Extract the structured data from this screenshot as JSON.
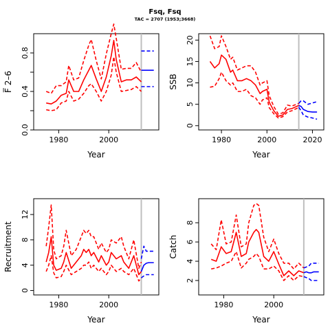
{
  "header": {
    "title": "Fsq, Fsq",
    "subtitle": "TAC = 2707 (1953;3668)"
  },
  "colors": {
    "estimate": "#ff0000",
    "projection": "#0000ff",
    "divider": "#bebebe"
  },
  "chart_data": [
    {
      "type": "line",
      "ylabel": "F̅ 2–6",
      "xlabel": "Year",
      "xlim": [
        1970,
        2020
      ],
      "ylim": [
        0,
        1.0
      ],
      "xticks": [
        1980,
        2000
      ],
      "yticks": [
        0.0,
        0.2,
        0.4,
        0.6,
        0.8
      ],
      "ytick_labels": [
        "0.0",
        "",
        "0.4",
        "",
        "0.8"
      ],
      "divider_year": 2013,
      "series": [
        {
          "role": "estimate",
          "style": "solid",
          "x": [
            1975,
            1977,
            1979,
            1981,
            1983,
            1984,
            1986,
            1988,
            1990,
            1992,
            1993,
            1995,
            1997,
            1999,
            2001,
            2002,
            2003,
            2005,
            2007,
            2009,
            2011,
            2013
          ],
          "y": [
            0.28,
            0.27,
            0.3,
            0.36,
            0.38,
            0.52,
            0.4,
            0.4,
            0.52,
            0.62,
            0.67,
            0.53,
            0.4,
            0.55,
            0.77,
            0.93,
            0.73,
            0.5,
            0.52,
            0.52,
            0.55,
            0.5
          ]
        },
        {
          "role": "estimate",
          "style": "dashed",
          "x": [
            1975,
            1977,
            1979,
            1981,
            1983,
            1984,
            1986,
            1988,
            1990,
            1992,
            1993,
            1995,
            1997,
            1999,
            2001,
            2002,
            2003,
            2005,
            2007,
            2009,
            2011,
            2013
          ],
          "y": [
            0.4,
            0.38,
            0.46,
            0.46,
            0.5,
            0.67,
            0.52,
            0.54,
            0.72,
            0.88,
            0.94,
            0.72,
            0.53,
            0.79,
            1.0,
            1.1,
            0.95,
            0.63,
            0.64,
            0.64,
            0.7,
            0.6
          ]
        },
        {
          "role": "estimate",
          "style": "dashed",
          "x": [
            1975,
            1977,
            1979,
            1981,
            1983,
            1984,
            1986,
            1988,
            1990,
            1992,
            1993,
            1995,
            1997,
            1999,
            2001,
            2002,
            2003,
            2005,
            2007,
            2009,
            2011,
            2013
          ],
          "y": [
            0.21,
            0.2,
            0.21,
            0.28,
            0.3,
            0.4,
            0.3,
            0.32,
            0.38,
            0.46,
            0.48,
            0.4,
            0.3,
            0.4,
            0.57,
            0.76,
            0.6,
            0.4,
            0.41,
            0.42,
            0.45,
            0.4
          ]
        },
        {
          "role": "projection",
          "style": "solid",
          "x": [
            2013,
            2014,
            2015,
            2016,
            2017,
            2018
          ],
          "y": [
            0.62,
            0.62,
            0.62,
            0.62,
            0.62,
            0.62
          ]
        },
        {
          "role": "projection",
          "style": "dashed",
          "x": [
            2013,
            2014,
            2015,
            2016,
            2017,
            2018
          ],
          "y": [
            0.82,
            0.82,
            0.82,
            0.82,
            0.82,
            0.82
          ]
        },
        {
          "role": "projection",
          "style": "dashed",
          "x": [
            2013,
            2014,
            2015,
            2016,
            2017,
            2018
          ],
          "y": [
            0.45,
            0.45,
            0.45,
            0.45,
            0.45,
            0.45
          ]
        }
      ]
    },
    {
      "type": "line",
      "ylabel": "SSB",
      "xlabel": "Year",
      "xlim": [
        1970,
        2025
      ],
      "ylim": [
        -1,
        21.5
      ],
      "xticks": [
        1980,
        2000,
        2020
      ],
      "yticks": [
        0,
        5,
        10,
        15,
        20
      ],
      "ytick_labels": [
        "0",
        "5",
        "10",
        "15",
        "20"
      ],
      "divider_year": 2014,
      "series": [
        {
          "role": "estimate",
          "style": "solid",
          "x": [
            1975,
            1977,
            1979,
            1980,
            1982,
            1984,
            1985,
            1987,
            1989,
            1991,
            1993,
            1995,
            1997,
            1998,
            2000,
            2001,
            2003,
            2005,
            2007,
            2009,
            2011,
            2013,
            2014
          ],
          "y": [
            15.0,
            13.5,
            14.5,
            16.5,
            15.5,
            12.5,
            13.0,
            10.5,
            10.5,
            11.0,
            10.5,
            9.5,
            7.5,
            8.0,
            8.5,
            5.5,
            3.5,
            2.2,
            2.5,
            3.8,
            4.0,
            4.5,
            4.7
          ]
        },
        {
          "role": "estimate",
          "style": "dashed",
          "x": [
            1975,
            1977,
            1979,
            1980,
            1982,
            1984,
            1985,
            1987,
            1989,
            1991,
            1993,
            1995,
            1997,
            1998,
            2000,
            2001,
            2003,
            2005,
            2007,
            2009,
            2011,
            2013,
            2014
          ],
          "y": [
            21.0,
            18.0,
            18.5,
            21.0,
            18.5,
            15.5,
            16.0,
            13.0,
            13.5,
            14.0,
            14.0,
            12.5,
            9.5,
            10.0,
            10.5,
            7.0,
            4.5,
            2.7,
            3.0,
            4.8,
            4.6,
            5.0,
            5.2
          ]
        },
        {
          "role": "estimate",
          "style": "dashed",
          "x": [
            1975,
            1977,
            1979,
            1980,
            1982,
            1984,
            1985,
            1987,
            1989,
            1991,
            1993,
            1995,
            1997,
            1998,
            2000,
            2001,
            2003,
            2005,
            2007,
            2009,
            2011,
            2013,
            2014
          ],
          "y": [
            9.0,
            9.2,
            11.0,
            12.5,
            10.5,
            9.5,
            10.0,
            8.0,
            8.0,
            8.5,
            7.0,
            6.5,
            5.0,
            6.0,
            6.5,
            4.2,
            2.8,
            1.8,
            2.1,
            3.2,
            3.5,
            4.0,
            4.3
          ]
        },
        {
          "role": "projection",
          "style": "solid",
          "x": [
            2014,
            2015,
            2016,
            2018,
            2020,
            2022
          ],
          "y": [
            4.7,
            4.5,
            3.8,
            3.3,
            3.2,
            3.2
          ]
        },
        {
          "role": "projection",
          "style": "dashed",
          "x": [
            2014,
            2015,
            2016,
            2018,
            2020,
            2022
          ],
          "y": [
            5.2,
            5.8,
            5.8,
            5.0,
            5.3,
            5.6
          ]
        },
        {
          "role": "projection",
          "style": "dashed",
          "x": [
            2014,
            2015,
            2016,
            2018,
            2020,
            2022
          ],
          "y": [
            4.3,
            3.5,
            2.5,
            2.0,
            1.8,
            1.5
          ]
        }
      ]
    },
    {
      "type": "line",
      "ylabel": "Recruitment",
      "xlabel": "Year",
      "xlim": [
        1970,
        2020
      ],
      "ylim": [
        -0.7,
        14.5
      ],
      "xticks": [
        1980,
        2000
      ],
      "yticks": [
        0,
        4,
        8,
        12
      ],
      "ytick_labels": [
        "0",
        "4",
        "8",
        "12"
      ],
      "divider_year": 2013,
      "series": [
        {
          "role": "estimate",
          "style": "solid",
          "x": [
            1975,
            1976,
            1977,
            1978,
            1979,
            1981,
            1982,
            1983,
            1985,
            1987,
            1989,
            1990,
            1991,
            1992,
            1993,
            1994,
            1996,
            1997,
            1999,
            2000,
            2001,
            2003,
            2005,
            2006,
            2008,
            2010,
            2012,
            2013
          ],
          "y": [
            4.5,
            6.0,
            8.5,
            4.0,
            3.2,
            3.5,
            4.5,
            6.0,
            3.5,
            4.5,
            5.5,
            6.5,
            6.0,
            6.5,
            5.5,
            6.0,
            4.5,
            5.5,
            4.0,
            4.5,
            6.0,
            5.0,
            5.5,
            4.5,
            3.5,
            5.5,
            2.5,
            3.0
          ]
        },
        {
          "role": "estimate",
          "style": "dashed",
          "x": [
            1975,
            1976,
            1977,
            1978,
            1979,
            1981,
            1982,
            1983,
            1985,
            1987,
            1989,
            1990,
            1991,
            1992,
            1993,
            1994,
            1996,
            1997,
            1999,
            2000,
            2001,
            2003,
            2005,
            2006,
            2008,
            2010,
            2012,
            2013
          ],
          "y": [
            7.0,
            10.0,
            13.5,
            6.5,
            5.0,
            5.5,
            7.0,
            9.5,
            5.5,
            6.5,
            8.5,
            9.5,
            9.0,
            9.5,
            8.5,
            8.5,
            6.5,
            7.5,
            6.0,
            6.5,
            8.0,
            7.5,
            8.5,
            7.0,
            5.0,
            8.0,
            3.5,
            4.5
          ]
        },
        {
          "role": "estimate",
          "style": "dashed",
          "x": [
            1975,
            1976,
            1977,
            1978,
            1979,
            1981,
            1982,
            1983,
            1985,
            1987,
            1989,
            1990,
            1991,
            1992,
            1993,
            1994,
            1996,
            1997,
            1999,
            2000,
            2001,
            2003,
            2005,
            2006,
            2008,
            2010,
            2012,
            2013
          ],
          "y": [
            3.0,
            4.0,
            5.5,
            2.8,
            2.0,
            2.2,
            3.0,
            4.0,
            2.5,
            3.0,
            3.5,
            4.0,
            4.0,
            4.5,
            3.5,
            4.0,
            3.0,
            3.5,
            2.5,
            3.0,
            4.0,
            3.0,
            3.5,
            3.0,
            2.5,
            3.5,
            1.5,
            2.0
          ]
        },
        {
          "role": "projection",
          "style": "solid",
          "x": [
            2013,
            2014,
            2015,
            2016,
            2017,
            2018
          ],
          "y": [
            3.0,
            4.0,
            4.3,
            4.4,
            4.4,
            4.4
          ]
        },
        {
          "role": "projection",
          "style": "dashed",
          "x": [
            2013,
            2014,
            2015,
            2016,
            2017,
            2018
          ],
          "y": [
            5.0,
            7.0,
            6.2,
            6.2,
            6.2,
            6.2
          ]
        },
        {
          "role": "projection",
          "style": "dashed",
          "x": [
            2013,
            2014,
            2015,
            2016,
            2017,
            2018
          ],
          "y": [
            2.0,
            2.3,
            2.5,
            2.5,
            2.5,
            2.5
          ]
        }
      ]
    },
    {
      "type": "line",
      "ylabel": "Catch",
      "xlabel": "Year",
      "xlim": [
        1970,
        2020
      ],
      "ylim": [
        0.5,
        10.5
      ],
      "xticks": [
        1980,
        2000
      ],
      "yticks": [
        2,
        4,
        6,
        8
      ],
      "ytick_labels": [
        "2",
        "4",
        "6",
        "8"
      ],
      "divider_year": 2012,
      "series": [
        {
          "role": "estimate",
          "style": "solid",
          "x": [
            1975,
            1977,
            1979,
            1981,
            1983,
            1985,
            1987,
            1989,
            1990,
            1992,
            1993,
            1994,
            1996,
            1998,
            2000,
            2002,
            2004,
            2006,
            2008,
            2010,
            2012
          ],
          "y": [
            4.2,
            4.0,
            5.5,
            4.8,
            5.0,
            7.0,
            4.5,
            4.8,
            6.0,
            7.0,
            7.3,
            7.0,
            4.5,
            4.0,
            5.0,
            3.7,
            2.5,
            3.0,
            2.5,
            3.0,
            2.8
          ]
        },
        {
          "role": "estimate",
          "style": "dashed",
          "x": [
            1975,
            1977,
            1979,
            1981,
            1983,
            1985,
            1987,
            1989,
            1990,
            1992,
            1993,
            1994,
            1996,
            1998,
            2000,
            2002,
            2004,
            2006,
            2008,
            2010,
            2012
          ],
          "y": [
            5.8,
            5.2,
            8.3,
            5.8,
            6.0,
            8.8,
            5.5,
            5.8,
            8.0,
            9.8,
            10.0,
            9.8,
            6.5,
            5.0,
            6.3,
            4.8,
            3.8,
            3.8,
            3.2,
            3.8,
            3.3
          ]
        },
        {
          "role": "estimate",
          "style": "dashed",
          "x": [
            1975,
            1977,
            1979,
            1981,
            1983,
            1985,
            1987,
            1989,
            1990,
            1992,
            1993,
            1994,
            1996,
            1998,
            2000,
            2002,
            2004,
            2006,
            2008,
            2010,
            2012
          ],
          "y": [
            3.2,
            3.3,
            3.5,
            3.8,
            4.0,
            5.0,
            3.3,
            3.8,
            4.2,
            4.5,
            4.8,
            4.5,
            3.2,
            3.2,
            3.5,
            3.0,
            2.0,
            2.5,
            2.0,
            2.5,
            2.4
          ]
        },
        {
          "role": "projection",
          "style": "solid",
          "x": [
            2012,
            2013,
            2014,
            2015,
            2016,
            2017,
            2018
          ],
          "y": [
            2.8,
            2.9,
            2.8,
            2.8,
            2.9,
            2.9,
            2.9
          ]
        },
        {
          "role": "projection",
          "style": "dashed",
          "x": [
            2012,
            2013,
            2014,
            2015,
            2016,
            2017,
            2018
          ],
          "y": [
            3.3,
            3.4,
            3.5,
            3.8,
            3.8,
            3.8,
            3.8
          ]
        },
        {
          "role": "projection",
          "style": "dashed",
          "x": [
            2012,
            2013,
            2014,
            2015,
            2016,
            2017,
            2018
          ],
          "y": [
            2.4,
            2.3,
            2.2,
            2.0,
            2.0,
            2.0,
            2.0
          ]
        }
      ]
    }
  ]
}
